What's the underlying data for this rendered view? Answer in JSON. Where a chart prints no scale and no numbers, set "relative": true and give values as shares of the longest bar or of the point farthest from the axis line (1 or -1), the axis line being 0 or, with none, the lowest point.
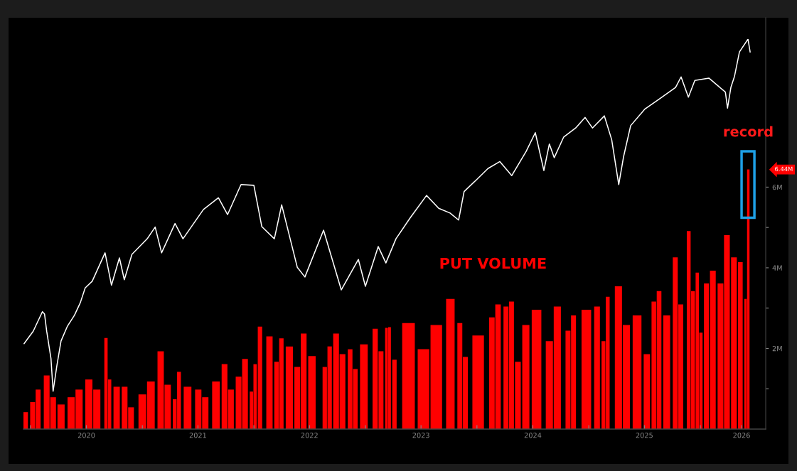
{
  "chart_data": [
    {
      "type": "line",
      "relative": true,
      "xlim": [
        "2019-12-09",
        "2026-08-03"
      ],
      "x": [
        "2019-12-11",
        "2020-01-10",
        "2020-02-09",
        "2020-02-16",
        "2020-02-23",
        "2020-03-08",
        "2020-03-15",
        "2020-03-27",
        "2020-04-10",
        "2020-05-01",
        "2020-05-24",
        "2020-06-12",
        "2020-06-28",
        "2020-07-21",
        "2020-09-01",
        "2020-09-22",
        "2020-10-18",
        "2020-11-03",
        "2020-11-28",
        "2021-01-17",
        "2021-02-12",
        "2021-03-05",
        "2021-04-18",
        "2021-05-14",
        "2021-07-20",
        "2021-09-07",
        "2021-10-07",
        "2021-11-20",
        "2022-01-01",
        "2022-01-27",
        "2022-03-09",
        "2022-04-02",
        "2022-05-23",
        "2022-06-17",
        "2022-08-17",
        "2022-10-14",
        "2022-12-09",
        "2023-01-01",
        "2023-02-12",
        "2023-03-09",
        "2023-04-11",
        "2023-05-27",
        "2023-07-20",
        "2023-08-29",
        "2023-10-05",
        "2023-11-02",
        "2023-11-20",
        "2023-12-30",
        "2024-02-06",
        "2024-03-16",
        "2024-04-24",
        "2024-06-10",
        "2024-07-10",
        "2024-08-07",
        "2024-08-25",
        "2024-09-10",
        "2024-10-11",
        "2024-11-19",
        "2024-12-20",
        "2025-01-13",
        "2025-02-21",
        "2025-03-17",
        "2025-04-09",
        "2025-04-25",
        "2025-05-18",
        "2025-07-04",
        "2025-08-19",
        "2025-10-12",
        "2025-10-30",
        "2025-11-23",
        "2025-12-14",
        "2026-01-29",
        "2026-03-24",
        "2026-03-31",
        "2026-04-11",
        "2026-04-23",
        "2026-05-09",
        "2026-06-06",
        "2026-06-13"
      ],
      "series": [
        {
          "color": "#ffffff",
          "values": [
            0.219,
            0.251,
            0.301,
            0.295,
            0.251,
            0.181,
            0.097,
            0.161,
            0.226,
            0.264,
            0.292,
            0.324,
            0.362,
            0.379,
            0.452,
            0.369,
            0.439,
            0.383,
            0.448,
            0.488,
            0.518,
            0.452,
            0.527,
            0.488,
            0.563,
            0.593,
            0.55,
            0.627,
            0.625,
            0.519,
            0.488,
            0.575,
            0.415,
            0.39,
            0.51,
            0.357,
            0.435,
            0.366,
            0.468,
            0.426,
            0.488,
            0.541,
            0.599,
            0.566,
            0.554,
            0.536,
            0.609,
            0.639,
            0.668,
            0.686,
            0.65,
            0.712,
            0.76,
            0.663,
            0.731,
            0.696,
            0.749,
            0.772,
            0.799,
            0.772,
            0.803,
            0.742,
            0.627,
            0.699,
            0.778,
            0.821,
            0.846,
            0.876,
            0.903,
            0.851,
            0.894,
            0.9,
            0.864,
            0.823,
            0.876,
            0.905,
            0.967,
            1.0,
            0.967
          ]
        }
      ]
    },
    {
      "type": "bar",
      "xlim": [
        "2019-12-09",
        "2026-08-03"
      ],
      "ylim": [
        0,
        10.2
      ],
      "xticks": [
        {
          "value": "2020-01-01",
          "label": null
        },
        {
          "value": "2020-07-02",
          "label": "2020"
        },
        {
          "value": "2021-01-01",
          "label": null
        },
        {
          "value": "2021-07-02",
          "label": "2021"
        },
        {
          "value": "2022-01-01",
          "label": null
        },
        {
          "value": "2022-07-02",
          "label": "2022"
        },
        {
          "value": "2023-01-01",
          "label": null
        },
        {
          "value": "2023-07-02",
          "label": "2023"
        },
        {
          "value": "2024-01-01",
          "label": null
        },
        {
          "value": "2024-07-02",
          "label": "2024"
        },
        {
          "value": "2025-01-01",
          "label": null
        },
        {
          "value": "2025-07-02",
          "label": "2025"
        },
        {
          "value": "2026-01-01",
          "label": null
        },
        {
          "value": "2026-05-16",
          "label": "2026"
        }
      ],
      "yticks": [
        {
          "value": 1,
          "label": null
        },
        {
          "value": 2,
          "label": "2M"
        },
        {
          "value": 3,
          "label": null
        },
        {
          "value": 4,
          "label": "4M"
        },
        {
          "value": 5,
          "label": null
        },
        {
          "value": 6,
          "label": "6M"
        }
      ],
      "x": [
        "2019-12-11",
        "2020-01-08",
        "2020-01-26",
        "2020-02-23",
        "2020-03-15",
        "2020-04-10",
        "2020-05-13",
        "2020-06-08",
        "2020-07-10",
        "2020-08-05",
        "2020-09-04",
        "2020-09-16",
        "2020-10-09",
        "2020-11-04",
        "2020-11-25",
        "2021-01-01",
        "2021-01-29",
        "2021-03-02",
        "2021-03-25",
        "2021-04-17",
        "2021-05-01",
        "2021-05-29",
        "2021-07-03",
        "2021-07-26",
        "2021-08-30",
        "2021-09-27",
        "2021-10-18",
        "2021-11-12",
        "2021-12-03",
        "2021-12-24",
        "2022-01-05",
        "2022-01-21",
        "2022-02-21",
        "2022-03-16",
        "2022-04-01",
        "2022-04-27",
        "2022-05-23",
        "2022-06-13",
        "2022-07-10",
        "2022-08-21",
        "2022-09-06",
        "2022-09-27",
        "2022-10-18",
        "2022-11-12",
        "2022-11-29",
        "2022-12-27",
        "2023-02-02",
        "2023-02-21",
        "2023-03-11",
        "2023-03-21",
        "2023-04-06",
        "2023-05-22",
        "2023-07-10",
        "2023-08-21",
        "2023-10-06",
        "2023-11-06",
        "2023-11-24",
        "2024-01-05",
        "2024-02-19",
        "2024-03-10",
        "2024-04-05",
        "2024-04-23",
        "2024-05-14",
        "2024-06-09",
        "2024-07-14",
        "2024-08-25",
        "2024-09-20",
        "2024-10-25",
        "2024-11-12",
        "2024-12-24",
        "2025-01-28",
        "2025-02-18",
        "2025-03-04",
        "2025-04-08",
        "2025-05-04",
        "2025-06-08",
        "2025-07-10",
        "2025-08-02",
        "2025-08-19",
        "2025-09-13",
        "2025-10-11",
        "2025-10-29",
        "2025-11-24",
        "2025-12-08",
        "2025-12-22",
        "2026-01-03",
        "2026-01-21",
        "2026-02-11",
        "2026-03-08",
        "2026-03-29",
        "2026-04-21",
        "2026-05-12",
        "2026-05-29",
        "2026-06-07"
      ],
      "series": [
        {
          "name": "PUT VOLUME",
          "color": "#ff0000",
          "values": [
            0.42,
            0.67,
            0.98,
            1.33,
            0.79,
            0.61,
            0.79,
            0.98,
            1.23,
            0.98,
            2.26,
            1.23,
            1.05,
            1.05,
            0.54,
            0.86,
            1.18,
            1.93,
            1.1,
            0.74,
            1.42,
            1.05,
            0.98,
            0.79,
            1.18,
            1.61,
            0.98,
            1.3,
            1.74,
            0.93,
            1.61,
            2.54,
            2.3,
            1.67,
            2.25,
            2.05,
            1.54,
            2.37,
            1.81,
            1.54,
            2.05,
            2.37,
            1.86,
            1.98,
            1.49,
            2.1,
            2.49,
            1.93,
            2.51,
            2.53,
            1.72,
            2.63,
            1.98,
            2.58,
            3.23,
            2.63,
            1.79,
            2.32,
            2.77,
            3.09,
            3.04,
            3.16,
            1.67,
            2.58,
            2.96,
            2.18,
            3.04,
            2.44,
            2.82,
            2.96,
            3.04,
            2.18,
            3.28,
            3.54,
            2.58,
            2.82,
            1.86,
            3.16,
            3.42,
            2.82,
            4.26,
            3.09,
            4.91,
            3.42,
            3.88,
            2.39,
            3.61,
            3.93,
            3.61,
            4.81,
            4.26,
            4.14,
            3.23,
            6.44
          ]
        }
      ],
      "annotations": [
        {
          "text": "record",
          "x": "2026-06-07",
          "y": 6.44
        },
        "6.44M"
      ]
    }
  ]
}
